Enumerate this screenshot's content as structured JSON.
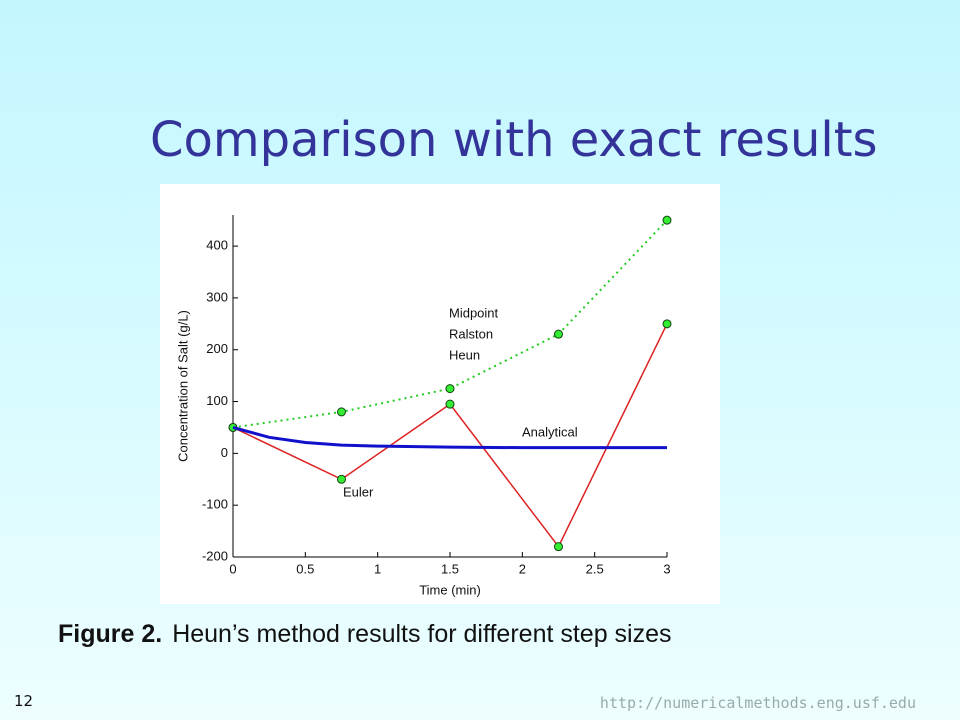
{
  "title": "Comparison with exact results",
  "caption": {
    "label": "Figure 2.",
    "text": "Heun’s method results for different step sizes"
  },
  "page_number": "12",
  "url": "http://numericalmethods.eng.usf.edu",
  "chart_data": {
    "type": "line",
    "xlabel": "Time (min)",
    "ylabel": "Concentration of Salt (g/L)",
    "xlim": [
      0,
      3
    ],
    "xticks": [
      0,
      0.5,
      1,
      1.5,
      2,
      2.5,
      3
    ],
    "ylim": [
      -200,
      460
    ],
    "yticks": [
      -200,
      -100,
      0,
      100,
      200,
      300,
      400
    ],
    "series": [
      {
        "labels": [
          "Midpoint",
          "Ralston",
          "Heun"
        ],
        "color": "#22cc22",
        "style": "dotted",
        "markers": true,
        "x": [
          0,
          0.75,
          1.5,
          2.25,
          3
        ],
        "values": [
          50,
          80,
          125,
          230,
          450
        ]
      },
      {
        "name": "Euler",
        "color": "#dd2222",
        "style": "solid",
        "markers": true,
        "x": [
          0,
          0.75,
          1.5,
          2.25,
          3
        ],
        "values": [
          50,
          -50,
          95,
          -180,
          250
        ]
      },
      {
        "name": "Analytical",
        "color": "#1111cc",
        "style": "solid",
        "markers": false,
        "x": [
          0,
          0.25,
          0.5,
          0.75,
          1,
          1.5,
          2,
          2.5,
          3
        ],
        "values": [
          50,
          31,
          21,
          16,
          14,
          12,
          11,
          11,
          11
        ]
      }
    ]
  }
}
